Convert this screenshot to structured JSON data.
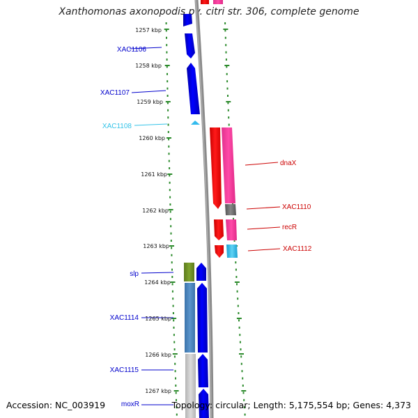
{
  "title": "Xanthomonas axonopodis pv. citri str. 306, complete genome",
  "footer": {
    "accession": "Accession: NC_003919",
    "summary": "Topology: circular; Length: 5,175,554 bp; Genes: 4,373"
  },
  "scale_labels": [
    "1257 kbp",
    "1258 kbp",
    "1259 kbp",
    "1260 kbp",
    "1261 kbp",
    "1262 kbp",
    "1263 kbp",
    "1264 kbp",
    "1265 kbp",
    "1266 kbp",
    "1267 kbp"
  ],
  "genes_left": [
    {
      "name": "XAC1106",
      "color": "#0000cc"
    },
    {
      "name": "XAC1107",
      "color": "#0000cc"
    },
    {
      "name": "XAC1108",
      "color": "#33c3e8"
    },
    {
      "name": "slp",
      "color": "#0000cc"
    },
    {
      "name": "XAC1114",
      "color": "#0000cc"
    },
    {
      "name": "XAC1115",
      "color": "#0000cc"
    },
    {
      "name": "moxR",
      "color": "#0000cc"
    }
  ],
  "genes_right": [
    {
      "name": "dnaX",
      "color": "#cc0000"
    },
    {
      "name": "XAC1110",
      "color": "#cc0000"
    },
    {
      "name": "recR",
      "color": "#cc0000"
    },
    {
      "name": "XAC1112",
      "color": "#cc0000"
    }
  ],
  "colors": {
    "tick_green": "#2b8a2b",
    "forward_strand": "#0000ee",
    "reverse_strand": "#ff0000",
    "cog_pink": "#ff3fa0",
    "cog_olive": "#6b8e23",
    "cog_steel": "#4a86c0",
    "cog_grey": "#c8c8c8",
    "backbone": "#888888"
  }
}
